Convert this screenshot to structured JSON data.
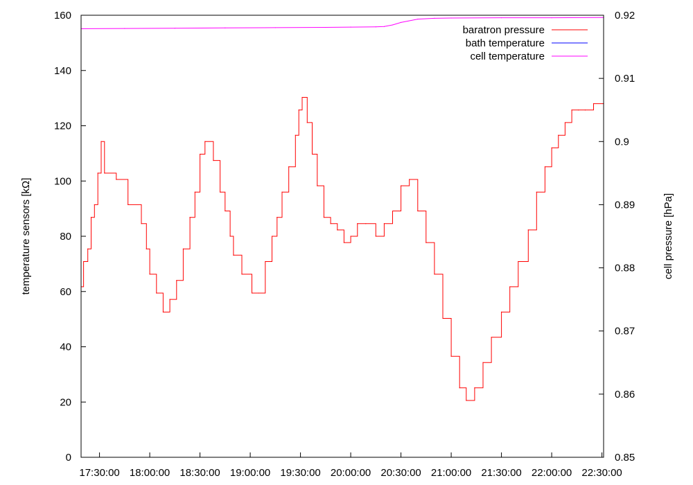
{
  "chart_data": {
    "type": "line",
    "title": "",
    "ylabel": "temperature sensors [kΩ]",
    "y2label": "cell pressure [hPa]",
    "xlim": [
      "17:19:00",
      "22:31:00"
    ],
    "ylim": [
      0,
      160
    ],
    "y2lim": [
      0.85,
      0.92
    ],
    "x_ticks": [
      "17:30:00",
      "18:00:00",
      "18:30:00",
      "19:00:00",
      "19:30:00",
      "20:00:00",
      "20:30:00",
      "21:00:00",
      "21:30:00",
      "22:00:00",
      "22:30:00"
    ],
    "y_ticks": [
      "0",
      "20",
      "40",
      "60",
      "80",
      "100",
      "120",
      "140",
      "160"
    ],
    "y2_ticks": [
      "0.85",
      "0.86",
      "0.87",
      "0.88",
      "0.89",
      "0.9",
      "0.91",
      "0.92"
    ],
    "grid": false,
    "legend_position": "top-right",
    "series": [
      {
        "name": "baratron pressure",
        "axis": "y2",
        "color": "#ff0000",
        "x": [
          "17:19:00",
          "17:20:30",
          "17:23:00",
          "17:25:00",
          "17:27:00",
          "17:29:00",
          "17:31:00",
          "17:33:00",
          "17:40:00",
          "17:47:00",
          "17:55:00",
          "17:58:00",
          "18:00:00",
          "18:04:00",
          "18:08:00",
          "18:12:00",
          "18:16:00",
          "18:20:00",
          "18:24:00",
          "18:27:00",
          "18:30:00",
          "18:33:00",
          "18:38:00",
          "18:42:00",
          "18:45:00",
          "18:48:00",
          "18:50:00",
          "18:55:00",
          "19:01:00",
          "19:05:00",
          "19:09:00",
          "19:13:00",
          "19:16:00",
          "19:19:00",
          "19:23:00",
          "19:27:00",
          "19:29:00",
          "19:31:00",
          "19:34:00",
          "19:37:00",
          "19:40:00",
          "19:44:00",
          "19:48:00",
          "19:52:00",
          "19:56:00",
          "20:00:00",
          "20:04:00",
          "20:09:00",
          "20:15:00",
          "20:20:00",
          "20:25:00",
          "20:30:00",
          "20:35:00",
          "20:40:00",
          "20:45:00",
          "20:50:00",
          "20:55:00",
          "21:00:00",
          "21:05:00",
          "21:09:00",
          "21:14:00",
          "21:19:00",
          "21:24:00",
          "21:30:00",
          "21:35:00",
          "21:40:00",
          "21:46:00",
          "21:51:00",
          "21:56:00",
          "22:00:00",
          "22:04:00",
          "22:08:00",
          "22:12:00",
          "22:16:00",
          "22:20:00",
          "22:25:00",
          "22:31:00"
        ],
        "y": [
          0.877,
          0.881,
          0.883,
          0.888,
          0.89,
          0.895,
          0.9,
          0.895,
          0.894,
          0.89,
          0.887,
          0.883,
          0.879,
          0.876,
          0.873,
          0.875,
          0.878,
          0.883,
          0.888,
          0.892,
          0.898,
          0.9,
          0.897,
          0.892,
          0.889,
          0.885,
          0.882,
          0.879,
          0.876,
          0.876,
          0.881,
          0.885,
          0.888,
          0.892,
          0.896,
          0.901,
          0.905,
          0.907,
          0.903,
          0.898,
          0.893,
          0.888,
          0.887,
          0.886,
          0.884,
          0.885,
          0.887,
          0.887,
          0.885,
          0.887,
          0.889,
          0.893,
          0.894,
          0.889,
          0.884,
          0.879,
          0.872,
          0.866,
          0.861,
          0.859,
          0.861,
          0.865,
          0.869,
          0.873,
          0.877,
          0.881,
          0.886,
          0.892,
          0.896,
          0.899,
          0.901,
          0.903,
          0.905,
          0.905,
          0.905,
          0.906,
          0.906
        ]
      },
      {
        "name": "bath temperature",
        "axis": "y",
        "color": "#0000ff",
        "x": [],
        "y": []
      },
      {
        "name": "cell temperature",
        "axis": "y",
        "color": "#ff00ff",
        "x": [
          "17:19:00",
          "17:45:00",
          "18:15:00",
          "18:45:00",
          "19:15:00",
          "19:45:00",
          "20:00:00",
          "20:15:00",
          "20:20:00",
          "20:25:00",
          "20:30:00",
          "20:40:00",
          "20:50:00",
          "21:00:00",
          "21:30:00",
          "22:00:00",
          "22:31:00"
        ],
        "y": [
          155.1,
          155.2,
          155.3,
          155.4,
          155.5,
          155.6,
          155.7,
          155.8,
          155.9,
          156.5,
          157.4,
          158.6,
          158.9,
          159.0,
          159.1,
          159.1,
          159.2
        ]
      }
    ]
  }
}
